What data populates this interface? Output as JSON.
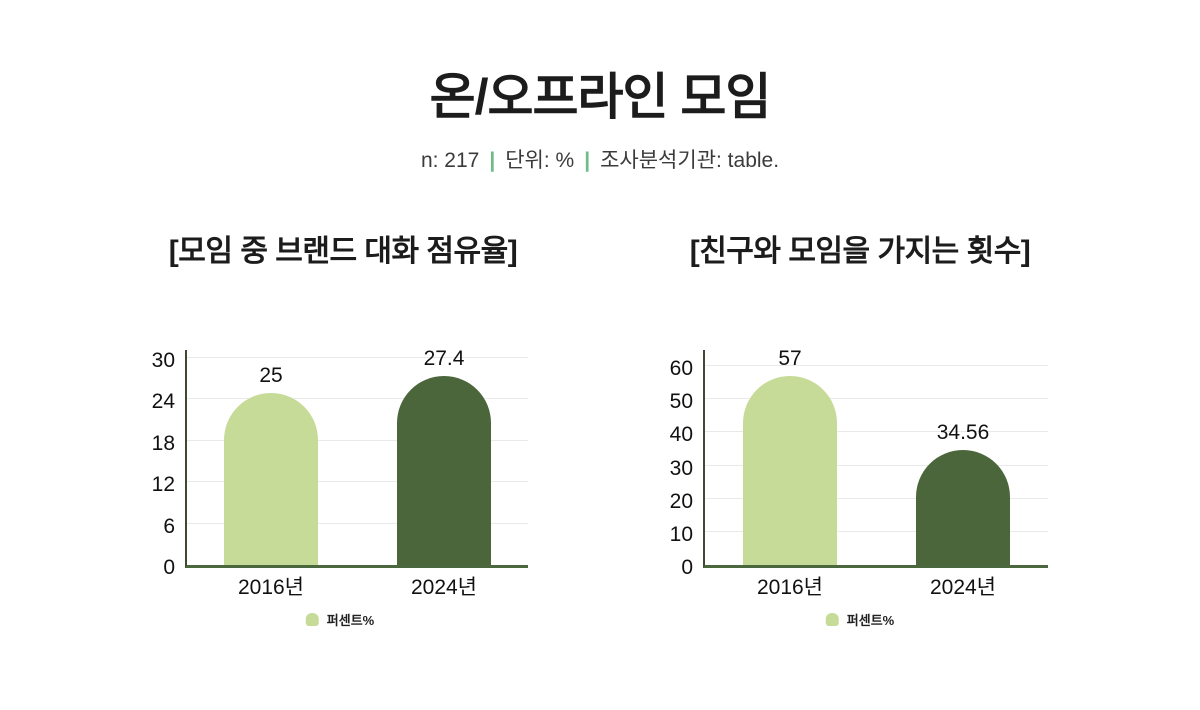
{
  "header": {
    "title": "온/오프라인 모임",
    "subtitle": {
      "parts": [
        "n: 217",
        "단위: %",
        "조사분석기관: table."
      ],
      "separator": "|"
    }
  },
  "colors": {
    "bar_light_green": "#c6db97",
    "bar_dark_green": "#4c663b",
    "axis_y_line": "#3e4a30",
    "axis_baseline": "#4a673d",
    "gridline": "#e9e9e9",
    "subtitle_separator": "#6fbc86",
    "title_text": "#1c1c1c"
  },
  "chart_data": [
    {
      "type": "bar",
      "title": "[모임 중 브랜드 대화 점유율]",
      "categories": [
        "2016년",
        "2024년"
      ],
      "values": [
        25,
        27.4
      ],
      "value_labels": [
        "25",
        "27.4"
      ],
      "bar_colors": [
        "#c6db97",
        "#4c663b"
      ],
      "yticks": [
        0,
        6,
        12,
        18,
        24,
        30
      ],
      "ylim": [
        0,
        30
      ],
      "grid": true,
      "legend": {
        "label": "퍼센트%",
        "color": "#c6db97",
        "position": "bottom"
      }
    },
    {
      "type": "bar",
      "title": "[친구와 모임을 가지는 횟수]",
      "categories": [
        "2016년",
        "2024년"
      ],
      "values": [
        57,
        34.56
      ],
      "value_labels": [
        "57",
        "34.56"
      ],
      "bar_colors": [
        "#c6db97",
        "#4c663b"
      ],
      "yticks": [
        0,
        10,
        20,
        30,
        40,
        50,
        60
      ],
      "ylim": [
        0,
        60
      ],
      "grid": true,
      "legend": {
        "label": "퍼센트%",
        "color": "#c6db97",
        "position": "bottom"
      }
    }
  ]
}
